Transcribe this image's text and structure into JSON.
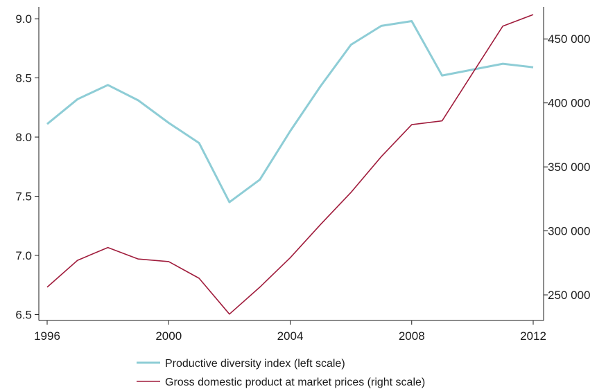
{
  "chart_data": {
    "type": "line",
    "x": [
      1996,
      1997,
      1998,
      1999,
      2000,
      2001,
      2002,
      2003,
      2004,
      2005,
      2006,
      2007,
      2008,
      2009,
      2010,
      2011,
      2012
    ],
    "x_ticks": [
      "1996",
      "2000",
      "2004",
      "2008",
      "2012"
    ],
    "xlim": [
      1996,
      2012
    ],
    "left_axis": {
      "ylim": [
        6.45,
        9.1
      ],
      "ticks": [
        6.5,
        7.0,
        7.5,
        8.0,
        8.5,
        9.0
      ],
      "tick_labels": [
        "6.5",
        "7.0",
        "7.5",
        "8.0",
        "8.5",
        "9.0"
      ]
    },
    "right_axis": {
      "ylim": [
        230000,
        475000
      ],
      "ticks": [
        250000,
        300000,
        350000,
        400000,
        450000
      ],
      "tick_labels": [
        "250 000",
        "300 000",
        "350 000",
        "400 000",
        "450 000"
      ]
    },
    "series": [
      {
        "name": "Productive diversity index (left scale)",
        "axis": "left",
        "color": "#8ecdd6",
        "values": [
          8.11,
          8.32,
          8.44,
          8.31,
          8.12,
          7.95,
          7.45,
          7.64,
          8.05,
          8.43,
          8.78,
          8.94,
          8.98,
          8.52,
          8.57,
          8.62,
          8.59
        ]
      },
      {
        "name": "Gross domestic product at market prices (right scale)",
        "axis": "right",
        "color": "#a01c3c",
        "values": [
          256000,
          277000,
          287000,
          278000,
          276000,
          263000,
          235000,
          256000,
          279000,
          305000,
          330000,
          358000,
          383000,
          386000,
          423000,
          460000,
          469000
        ]
      }
    ],
    "legend_position": "bottom-center",
    "grid": false
  }
}
